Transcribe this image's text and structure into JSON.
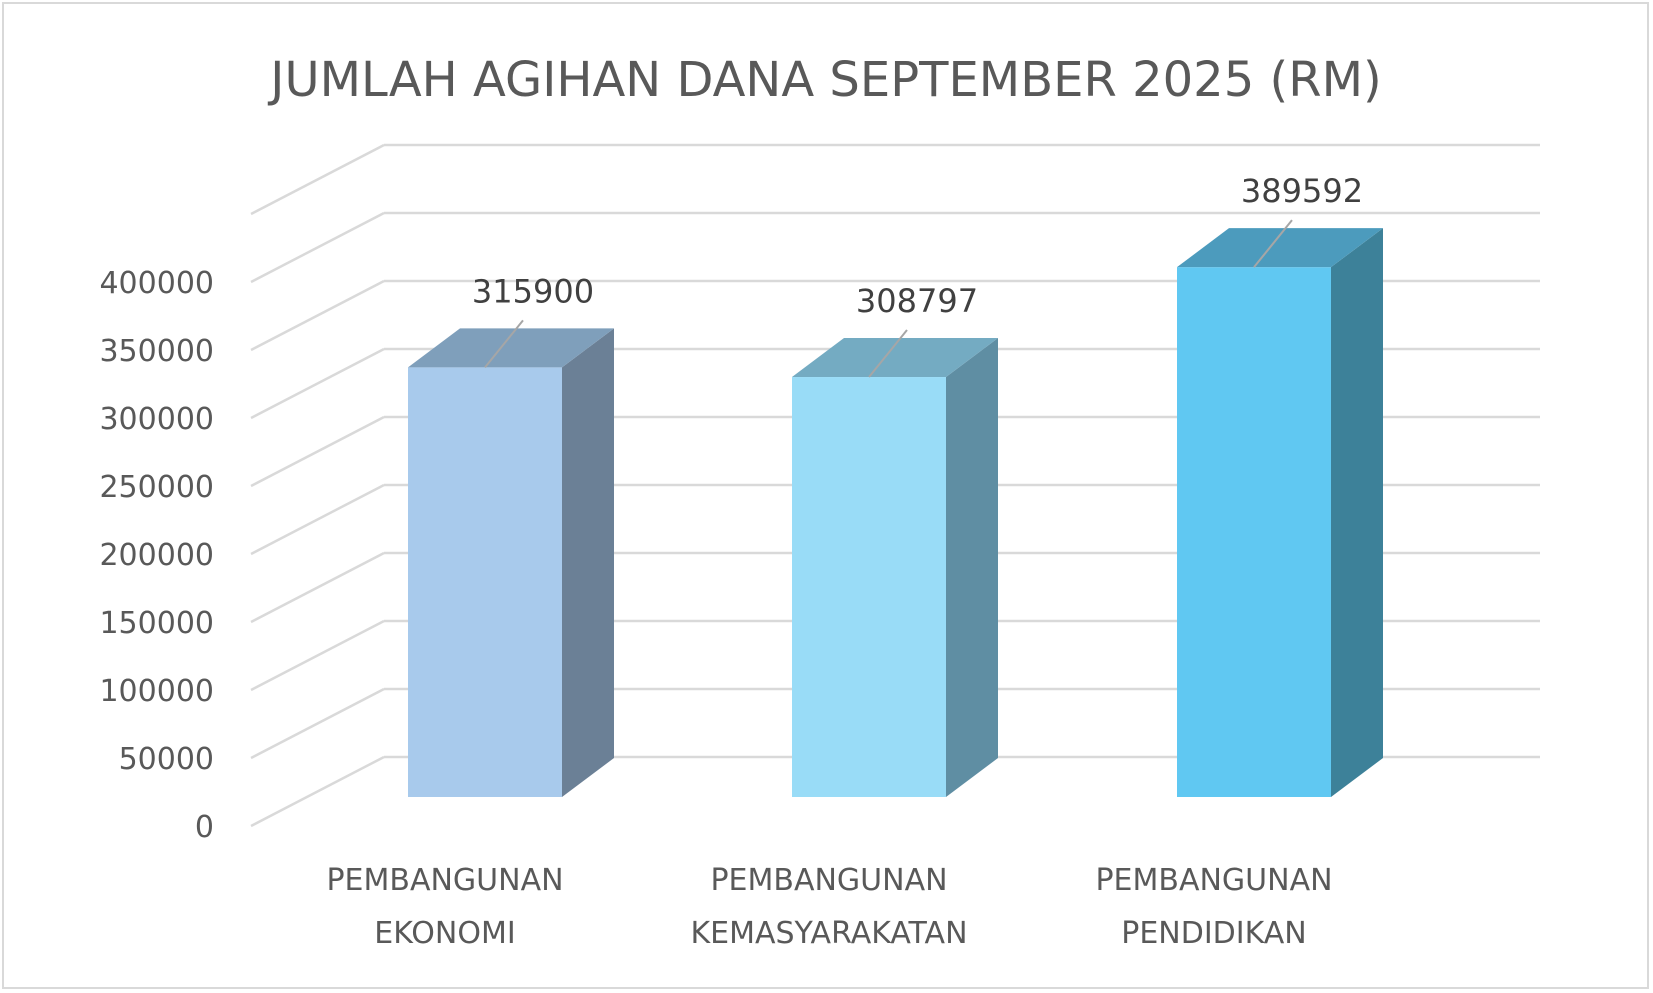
{
  "chart_data": {
    "type": "bar",
    "title": "JUMLAH AGIHAN DANA SEPTEMBER 2025 (RM)",
    "categories": [
      [
        "PEMBANGUNAN",
        "EKONOMI"
      ],
      [
        "PEMBANGUNAN",
        "KEMASYARAKATAN"
      ],
      [
        "PEMBANGUNAN",
        "PENDIDIKAN"
      ]
    ],
    "values": [
      315900,
      308797,
      389592
    ],
    "data_labels": [
      "315900",
      "308797",
      "389592"
    ],
    "yticks": [
      0,
      50000,
      100000,
      150000,
      200000,
      250000,
      300000,
      350000,
      400000
    ],
    "ytick_labels": [
      "0",
      "50000",
      "100000",
      "150000",
      "200000",
      "250000",
      "300000",
      "350000",
      "400000"
    ],
    "ylim": [
      0,
      450000
    ],
    "style": "3d-column",
    "grid": true,
    "legend": "none",
    "colors": {
      "front": [
        "#a8caec",
        "#99dcf7",
        "#60c8f2"
      ],
      "side": [
        "#6b8096",
        "#5f8ea3",
        "#3d8199"
      ],
      "top": [
        "#7f9fbb",
        "#74abc2",
        "#4c9bbd"
      ],
      "grid": "#d9d9d9",
      "leader": "#a6a6a6"
    }
  }
}
